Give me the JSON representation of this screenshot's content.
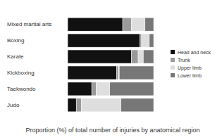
{
  "chart_data": {
    "type": "bar",
    "orientation": "horizontal",
    "stacked": true,
    "title": "Proportion (%) of total number of injuries by anatomical region",
    "categories": [
      "Mixed martial arts",
      "Boxing",
      "Karate",
      "Kickboxing",
      "Taekwondo",
      "Judo"
    ],
    "series": [
      {
        "name": "Head and neck",
        "color": "#111111",
        "values": [
          64,
          84,
          74,
          57,
          28,
          10
        ]
      },
      {
        "name": "Trunk",
        "color": "#9a9a9a",
        "values": [
          10,
          2,
          8,
          2,
          5,
          6
        ]
      },
      {
        "name": "Upper limb",
        "color": "#dedede",
        "values": [
          16,
          9,
          6,
          1,
          16,
          46
        ]
      },
      {
        "name": "Lower limb",
        "color": "#777777",
        "values": [
          10,
          5,
          12,
          40,
          51,
          38
        ]
      }
    ],
    "xlim": [
      0,
      100
    ],
    "tick_labels": "y",
    "grid": false,
    "legend": "right"
  }
}
